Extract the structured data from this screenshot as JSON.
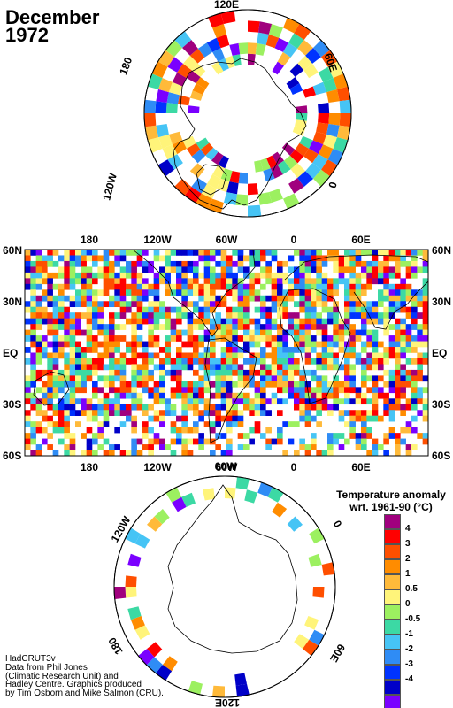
{
  "title": {
    "line1": "December",
    "line2": "1972"
  },
  "legend": {
    "title_line1": "Temperature anomaly",
    "title_line2": "wrt. 1961-90  (°C)",
    "colors": [
      "#a0007e",
      "#ff0000",
      "#ff4f00",
      "#ff8c00",
      "#ffba3a",
      "#fff47a",
      "#9cf060",
      "#3cd9a4",
      "#46c4f5",
      "#2f8cf5",
      "#0033ff",
      "#0000c8",
      "#7a00ff"
    ],
    "ticks": [
      "4",
      "3",
      "2",
      "1",
      "0.5",
      "0",
      "-0.5",
      "-1",
      "-2",
      "-3",
      "-4"
    ]
  },
  "credits": {
    "line1": "HadCRUT3v",
    "line2": "Data from Phil Jones",
    "line3": "(Climatic Research Unit) and",
    "line4": "Hadley Centre.  Graphics produced",
    "line5": "by Tim Osborn and Mike Salmon (CRU)."
  },
  "north_polar": {
    "lon_labels": [
      "120E",
      "60E",
      "0",
      "120W",
      "180"
    ]
  },
  "world_map": {
    "top_lon_labels": [
      "180",
      "120W",
      "60W",
      "0",
      "60E"
    ],
    "bottom_lon_labels": [
      "180",
      "120W",
      "60W",
      "0",
      "60E"
    ],
    "lat_labels_left": [
      "60N",
      "30N",
      "EQ",
      "30S",
      "60S"
    ],
    "lat_labels_right": [
      "60N",
      "30N",
      "EQ",
      "30S",
      "60S"
    ]
  },
  "south_polar": {
    "lon_labels": [
      "60W",
      "0",
      "120W",
      "60E",
      "180",
      "120E"
    ]
  }
}
